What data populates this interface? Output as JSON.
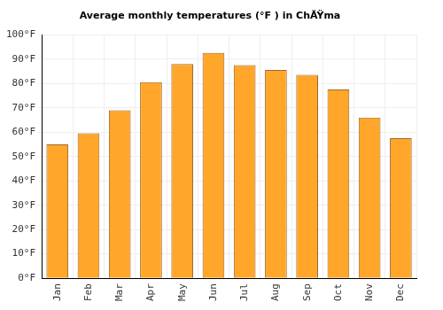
{
  "chart_data": {
    "type": "bar",
    "title": "Average monthly temperatures (°F ) in ChĂŸma",
    "categories": [
      "Jan",
      "Feb",
      "Mar",
      "Apr",
      "May",
      "Jun",
      "Jul",
      "Aug",
      "Sep",
      "Oct",
      "Nov",
      "Dec"
    ],
    "values": [
      55,
      59.5,
      69,
      80.5,
      88,
      92.5,
      87.5,
      85.5,
      83.5,
      77.5,
      66,
      57.5
    ],
    "color": "#ffa62b",
    "ylim": [
      0,
      100
    ],
    "yticks": [
      {
        "value": 0,
        "label": "0°F"
      },
      {
        "value": 10,
        "label": "10°F"
      },
      {
        "value": 20,
        "label": "20°F"
      },
      {
        "value": 30,
        "label": "30°F"
      },
      {
        "value": 40,
        "label": "40°F"
      },
      {
        "value": 50,
        "label": "50°F"
      },
      {
        "value": 60,
        "label": "60°F"
      },
      {
        "value": 70,
        "label": "70°F"
      },
      {
        "value": 80,
        "label": "80°F"
      },
      {
        "value": 90,
        "label": "90°F"
      },
      {
        "value": 100,
        "label": "100°F"
      }
    ],
    "grid": true
  }
}
